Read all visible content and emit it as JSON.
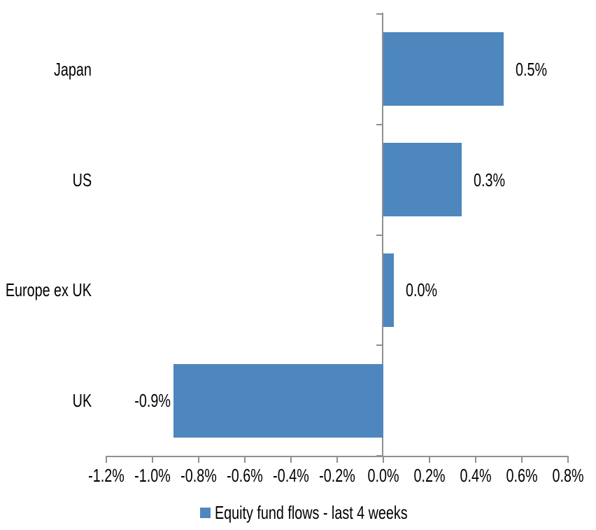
{
  "chart_data": {
    "type": "bar",
    "orientation": "horizontal",
    "title": "",
    "xlabel": "",
    "ylabel": "",
    "categories": [
      "Japan",
      "US",
      "Europe ex UK",
      "UK"
    ],
    "series": [
      {
        "name": "Equity fund flows - last 4 weeks",
        "values": [
          0.5,
          0.3,
          0.0,
          -0.9
        ],
        "data_labels": [
          "0.5%",
          "0.3%",
          "0.0%",
          "-0.9%"
        ],
        "plotted_values": [
          0.52,
          0.34,
          0.045,
          -0.91
        ],
        "color": "#4E86BE"
      }
    ],
    "xlim": [
      -1.2,
      0.8
    ],
    "x_tick_values": [
      -1.2,
      -1.0,
      -0.8,
      -0.6,
      -0.4,
      -0.2,
      0.0,
      0.2,
      0.4,
      0.6,
      0.8
    ],
    "x_tick_labels": [
      "-1.2%",
      "-1.0%",
      "-0.8%",
      "-0.6%",
      "-0.4%",
      "-0.2%",
      "0.0%",
      "0.2%",
      "0.4%",
      "0.6%",
      "0.8%"
    ],
    "grid": false,
    "legend_position": "bottom",
    "axis_color": "#909090",
    "text_color": "#000000",
    "background": "#FFFFFF"
  },
  "legend": {
    "marker_color": "#4E86BE",
    "label": "Equity fund flows - last 4 weeks"
  }
}
